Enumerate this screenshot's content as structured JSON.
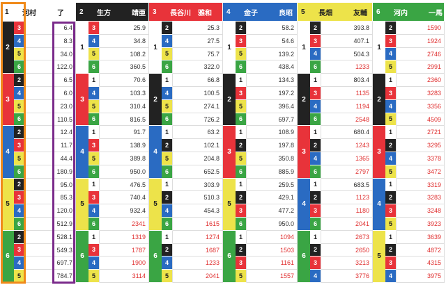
{
  "headers": [
    {
      "num": "1",
      "name": "河村　　　了",
      "color": "#ffffff",
      "text": "#222222"
    },
    {
      "num": "2",
      "name": "生方　　　靖亜",
      "color": "#222222",
      "text": "#ffffff"
    },
    {
      "num": "3",
      "name": "長谷川　雅和",
      "color": "#e8333a",
      "text": "#ffffff"
    },
    {
      "num": "4",
      "name": "金子　　　良昭",
      "color": "#2a6bc2",
      "text": "#ffffff"
    },
    {
      "num": "5",
      "name": "長畑　　　友輔",
      "color": "#ede34a",
      "text": "#222222"
    },
    {
      "num": "6",
      "name": "河内　　　一馬",
      "color": "#3aa544",
      "text": "#ffffff"
    }
  ],
  "colors": {
    "frame_orange": "#f08a1a",
    "frame_purple": "#7a2a8a",
    "highlight_red": "#e03030"
  },
  "firsts": [
    "1",
    "2",
    "3",
    "4",
    "5",
    "6"
  ],
  "seconds": {
    "1": [
      "2",
      "3",
      "4",
      "5",
      "6"
    ],
    "2": [
      "1",
      "3",
      "4",
      "5",
      "6"
    ],
    "3": [
      "1",
      "2",
      "4",
      "5",
      "6"
    ],
    "4": [
      "1",
      "2",
      "3",
      "5",
      "6"
    ],
    "5": [
      "1",
      "2",
      "3",
      "4",
      "6"
    ],
    "6": [
      "1",
      "2",
      "3",
      "4",
      "5"
    ]
  },
  "cols": [
    {
      "groups": [
        {
          "f": "2",
          "rows": [
            [
              "3",
              "6.4"
            ],
            [
              "4",
              "8.3"
            ],
            [
              "5",
              "34.0"
            ],
            [
              "6",
              "122.0"
            ]
          ]
        },
        {
          "f": "3",
          "rows": [
            [
              "2",
              "6.5"
            ],
            [
              "4",
              "6.0"
            ],
            [
              "5",
              "23.0"
            ],
            [
              "6",
              "110.5"
            ]
          ]
        },
        {
          "f": "4",
          "rows": [
            [
              "2",
              "12.4"
            ],
            [
              "3",
              "11.7"
            ],
            [
              "5",
              "44.4"
            ],
            [
              "6",
              "180.9"
            ]
          ]
        },
        {
          "f": "5",
          "rows": [
            [
              "2",
              "95.0"
            ],
            [
              "3",
              "85.3"
            ],
            [
              "4",
              "120.0"
            ],
            [
              "6",
              "512.9"
            ]
          ]
        },
        {
          "f": "6",
          "rows": [
            [
              "2",
              "528.1"
            ],
            [
              "3",
              "549.3"
            ],
            [
              "4",
              "697.7"
            ],
            [
              "5",
              "784.7"
            ]
          ]
        }
      ]
    },
    {
      "groups": [
        {
          "f": "1",
          "rows": [
            [
              "3",
              "25.9"
            ],
            [
              "4",
              "34.8"
            ],
            [
              "5",
              "108.2"
            ],
            [
              "6",
              "360.5"
            ]
          ]
        },
        {
          "f": "3",
          "rows": [
            [
              "1",
              "70.6"
            ],
            [
              "4",
              "103.3"
            ],
            [
              "5",
              "310.4"
            ],
            [
              "6",
              "816.5"
            ]
          ]
        },
        {
          "f": "4",
          "rows": [
            [
              "1",
              "91.7"
            ],
            [
              "3",
              "138.9"
            ],
            [
              "5",
              "389.8"
            ],
            [
              "6",
              "950.0"
            ]
          ]
        },
        {
          "f": "5",
          "rows": [
            [
              "1",
              "476.5"
            ],
            [
              "3",
              "740.4"
            ],
            [
              "4",
              "932.4"
            ],
            [
              "6",
              "2341"
            ]
          ]
        },
        {
          "f": "6",
          "rows": [
            [
              "1",
              "1319"
            ],
            [
              "3",
              "1787"
            ],
            [
              "4",
              "1900"
            ],
            [
              "5",
              "3114"
            ]
          ]
        }
      ]
    },
    {
      "groups": [
        {
          "f": "1",
          "rows": [
            [
              "2",
              "25.3"
            ],
            [
              "4",
              "27.5"
            ],
            [
              "5",
              "75.7"
            ],
            [
              "6",
              "322.0"
            ]
          ]
        },
        {
          "f": "2",
          "rows": [
            [
              "1",
              "66.8"
            ],
            [
              "4",
              "100.5"
            ],
            [
              "5",
              "274.1"
            ],
            [
              "6",
              "726.2"
            ]
          ]
        },
        {
          "f": "4",
          "rows": [
            [
              "1",
              "63.2"
            ],
            [
              "2",
              "102.1"
            ],
            [
              "5",
              "204.8"
            ],
            [
              "6",
              "652.5"
            ]
          ]
        },
        {
          "f": "5",
          "rows": [
            [
              "1",
              "303.9"
            ],
            [
              "2",
              "510.3"
            ],
            [
              "4",
              "454.3"
            ],
            [
              "6",
              "1615"
            ]
          ]
        },
        {
          "f": "6",
          "rows": [
            [
              "1",
              "1274"
            ],
            [
              "2",
              "1687"
            ],
            [
              "4",
              "1233"
            ],
            [
              "5",
              "2041"
            ]
          ]
        }
      ]
    },
    {
      "groups": [
        {
          "f": "1",
          "rows": [
            [
              "2",
              "58.2"
            ],
            [
              "3",
              "54.6"
            ],
            [
              "5",
              "139.2"
            ],
            [
              "6",
              "438.4"
            ]
          ]
        },
        {
          "f": "2",
          "rows": [
            [
              "1",
              "134.3"
            ],
            [
              "3",
              "197.2"
            ],
            [
              "5",
              "396.4"
            ],
            [
              "6",
              "697.7"
            ]
          ]
        },
        {
          "f": "3",
          "rows": [
            [
              "1",
              "108.9"
            ],
            [
              "2",
              "197.8"
            ],
            [
              "5",
              "350.8"
            ],
            [
              "6",
              "885.9"
            ]
          ]
        },
        {
          "f": "5",
          "rows": [
            [
              "1",
              "259.5"
            ],
            [
              "2",
              "429.1"
            ],
            [
              "3",
              "477.2"
            ],
            [
              "6",
              "950.0"
            ]
          ]
        },
        {
          "f": "6",
          "rows": [
            [
              "1",
              "1094"
            ],
            [
              "2",
              "1503"
            ],
            [
              "3",
              "1161"
            ],
            [
              "5",
              "1557"
            ]
          ]
        }
      ]
    },
    {
      "groups": [
        {
          "f": "1",
          "rows": [
            [
              "2",
              "393.8"
            ],
            [
              "3",
              "407.1"
            ],
            [
              "4",
              "504.3"
            ],
            [
              "6",
              "1233"
            ]
          ]
        },
        {
          "f": "2",
          "rows": [
            [
              "1",
              "803.4"
            ],
            [
              "3",
              "1135"
            ],
            [
              "4",
              "1194"
            ],
            [
              "6",
              "2548"
            ]
          ]
        },
        {
          "f": "3",
          "rows": [
            [
              "1",
              "680.4"
            ],
            [
              "2",
              "1243"
            ],
            [
              "4",
              "1365"
            ],
            [
              "6",
              "2797"
            ]
          ]
        },
        {
          "f": "4",
          "rows": [
            [
              "1",
              "683.5"
            ],
            [
              "2",
              "1123"
            ],
            [
              "3",
              "1180"
            ],
            [
              "6",
              "2041"
            ]
          ]
        },
        {
          "f": "6",
          "rows": [
            [
              "1",
              "2673"
            ],
            [
              "2",
              "2650"
            ],
            [
              "3",
              "3213"
            ],
            [
              "4",
              "3776"
            ]
          ]
        }
      ]
    },
    {
      "groups": [
        {
          "f": "1",
          "rows": [
            [
              "2",
              "1590"
            ],
            [
              "3",
              "1924"
            ],
            [
              "4",
              "2746"
            ],
            [
              "5",
              "2991"
            ]
          ]
        },
        {
          "f": "2",
          "rows": [
            [
              "1",
              "2360"
            ],
            [
              "3",
              "3283"
            ],
            [
              "4",
              "3356"
            ],
            [
              "5",
              "4509"
            ]
          ]
        },
        {
          "f": "3",
          "rows": [
            [
              "1",
              "2721"
            ],
            [
              "2",
              "3295"
            ],
            [
              "4",
              "3378"
            ],
            [
              "5",
              "3472"
            ]
          ]
        },
        {
          "f": "4",
          "rows": [
            [
              "1",
              "3319"
            ],
            [
              "2",
              "3283"
            ],
            [
              "3",
              "3248"
            ],
            [
              "5",
              "3923"
            ]
          ]
        },
        {
          "f": "5",
          "rows": [
            [
              "1",
              "3639"
            ],
            [
              "2",
              "4872"
            ],
            [
              "3",
              "4315"
            ],
            [
              "4",
              "3975"
            ]
          ]
        }
      ]
    }
  ]
}
